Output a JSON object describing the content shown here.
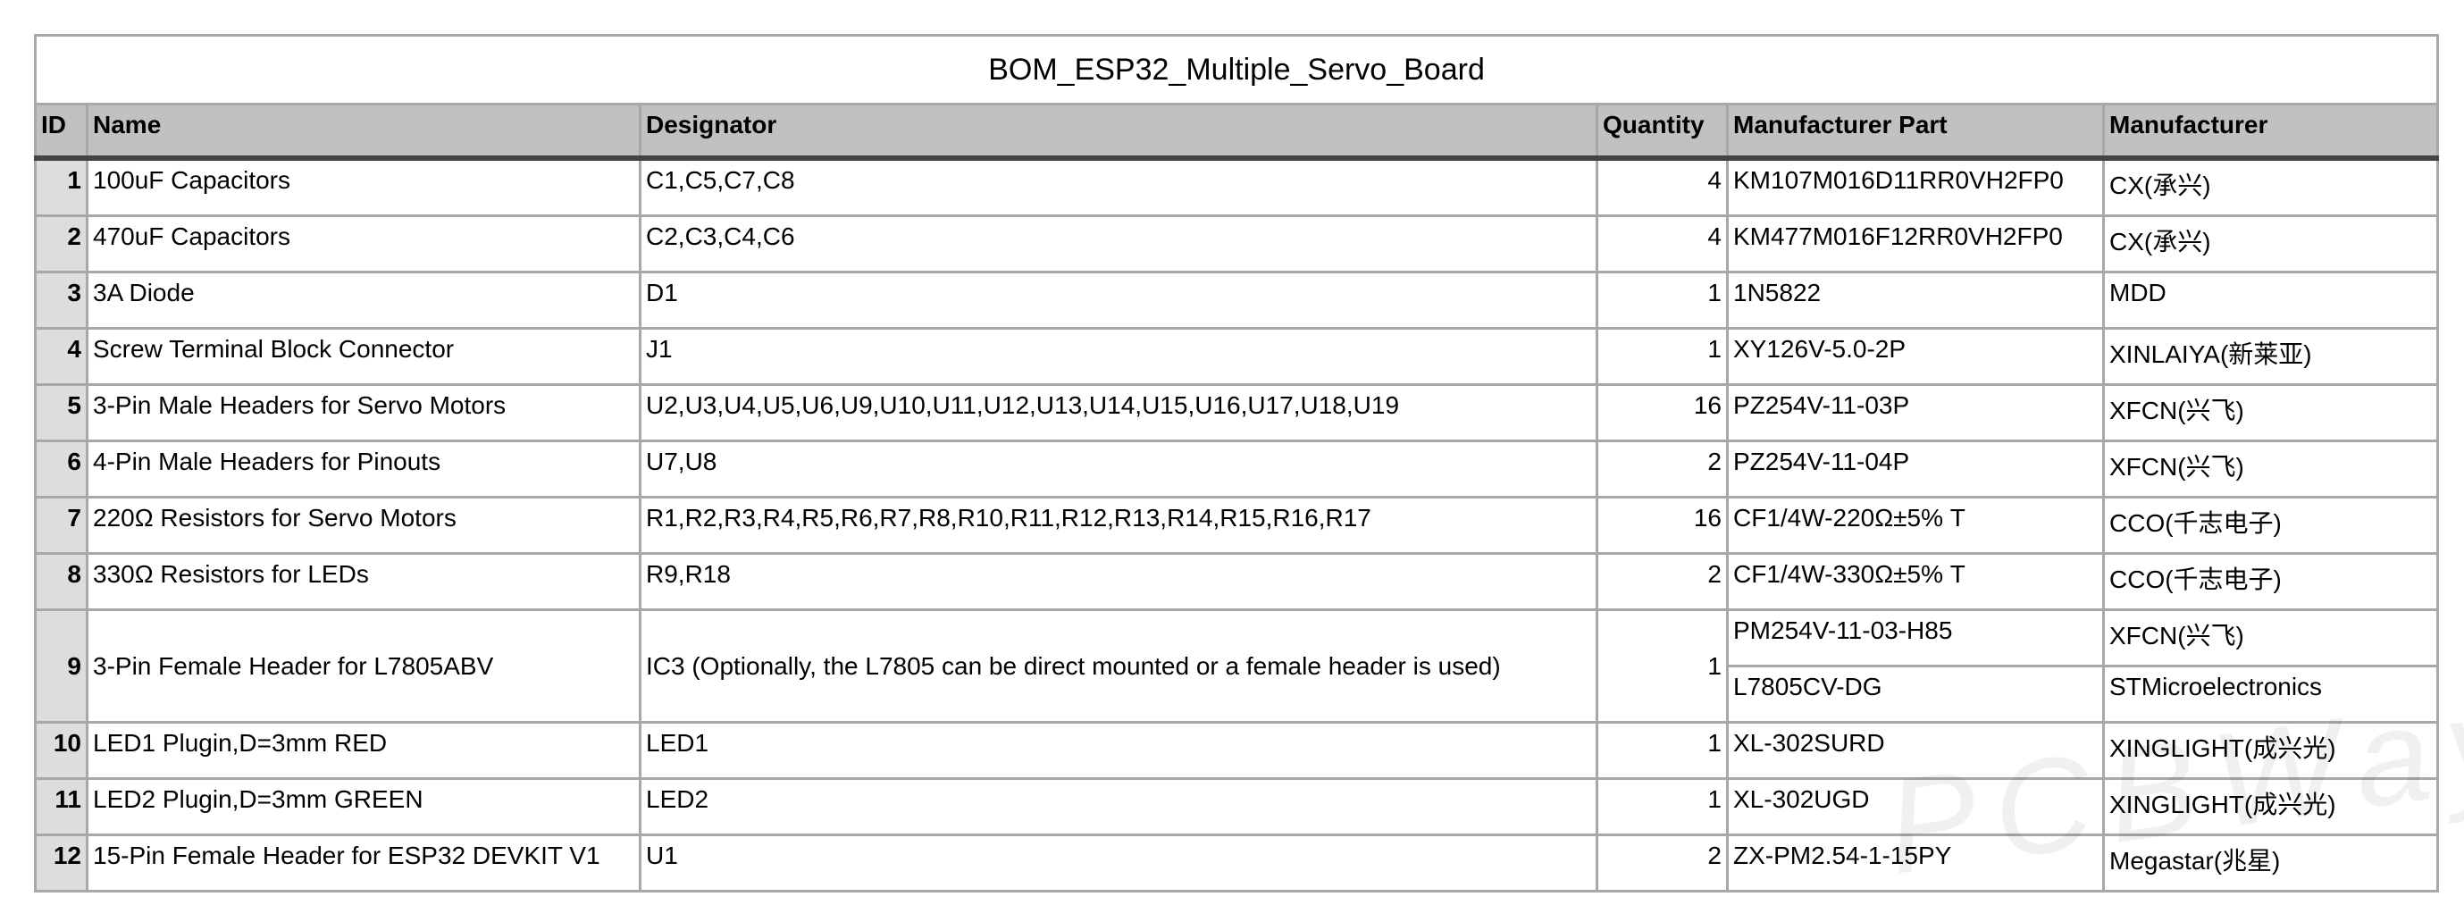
{
  "title": "BOM_ESP32_Multiple_Servo_Board",
  "columns": [
    "ID",
    "Name",
    "Designator",
    "Quantity",
    "Manufacturer Part",
    "Manufacturer"
  ],
  "rows": [
    {
      "id": "1",
      "name": "100uF Capacitors",
      "designator": "C1,C5,C7,C8",
      "quantity": "4",
      "parts": [
        {
          "part": "KM107M016D11RR0VH2FP0",
          "manufacturer": "CX(承兴)"
        }
      ]
    },
    {
      "id": "2",
      "name": "470uF Capacitors",
      "designator": "C2,C3,C4,C6",
      "quantity": "4",
      "parts": [
        {
          "part": "KM477M016F12RR0VH2FP0",
          "manufacturer": "CX(承兴)"
        }
      ]
    },
    {
      "id": "3",
      "name": "3A Diode",
      "designator": "D1",
      "quantity": "1",
      "parts": [
        {
          "part": "1N5822",
          "manufacturer": "MDD"
        }
      ]
    },
    {
      "id": "4",
      "name": "Screw Terminal Block Connector",
      "designator": "J1",
      "quantity": "1",
      "parts": [
        {
          "part": "XY126V-5.0-2P",
          "manufacturer": "XINLAIYA(新莱亚)"
        }
      ]
    },
    {
      "id": "5",
      "name": "3-Pin Male Headers for Servo Motors",
      "designator": "U2,U3,U4,U5,U6,U9,U10,U11,U12,U13,U14,U15,U16,U17,U18,U19",
      "quantity": "16",
      "parts": [
        {
          "part": "PZ254V-11-03P",
          "manufacturer": "XFCN(兴飞)"
        }
      ]
    },
    {
      "id": "6",
      "name": "4-Pin Male Headers for Pinouts",
      "designator": "U7,U8",
      "quantity": "2",
      "parts": [
        {
          "part": "PZ254V-11-04P",
          "manufacturer": "XFCN(兴飞)"
        }
      ]
    },
    {
      "id": "7",
      "name": "220Ω Resistors for Servo Motors",
      "designator": "R1,R2,R3,R4,R5,R6,R7,R8,R10,R11,R12,R13,R14,R15,R16,R17",
      "quantity": "16",
      "parts": [
        {
          "part": "CF1/4W-220Ω±5% T",
          "manufacturer": "CCO(千志电子)"
        }
      ]
    },
    {
      "id": "8",
      "name": "330Ω Resistors for LEDs",
      "designator": "R9,R18",
      "quantity": "2",
      "parts": [
        {
          "part": "CF1/4W-330Ω±5% T",
          "manufacturer": "CCO(千志电子)"
        }
      ]
    },
    {
      "id": "9",
      "name": "3-Pin Female Header for L7805ABV",
      "designator": "IC3 (Optionally, the L7805 can be direct mounted or a female header is used)",
      "quantity": "1",
      "parts": [
        {
          "part": "PM254V-11-03-H85",
          "manufacturer": "XFCN(兴飞)"
        },
        {
          "part": "L7805CV-DG",
          "manufacturer": "STMicroelectronics"
        }
      ]
    },
    {
      "id": "10",
      "name": "LED1 Plugin,D=3mm RED",
      "designator": "LED1",
      "quantity": "1",
      "parts": [
        {
          "part": "XL-302SURD",
          "manufacturer": "XINGLIGHT(成兴光)"
        }
      ]
    },
    {
      "id": "11",
      "name": "LED2 Plugin,D=3mm GREEN",
      "designator": "LED2",
      "quantity": "1",
      "parts": [
        {
          "part": "XL-302UGD",
          "manufacturer": "XINGLIGHT(成兴光)"
        }
      ]
    },
    {
      "id": "12",
      "name": "15-Pin Female Header for ESP32 DEVKIT V1",
      "designator": "U1",
      "quantity": "2",
      "parts": [
        {
          "part": "ZX-PM2.54-1-15PY",
          "manufacturer": "Megastar(兆星)"
        }
      ]
    }
  ],
  "watermark": "PCBWay",
  "colors": {
    "header_bg": "#c0c1c0",
    "id_bg": "#dddddd",
    "grid": "#a8a8a8"
  }
}
